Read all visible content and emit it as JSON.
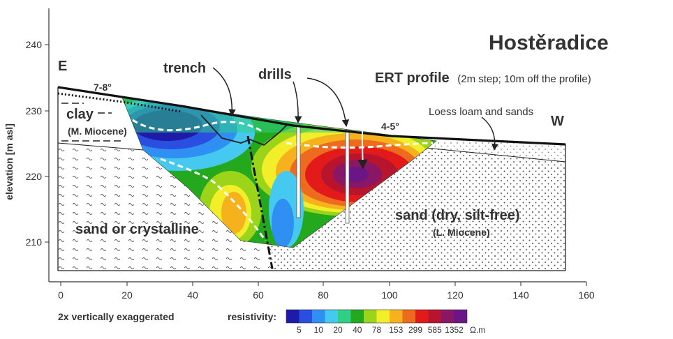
{
  "title": "Hostěradice",
  "y_axis": {
    "label": "elevation [m asl]",
    "ticks": [
      "210",
      "220",
      "230",
      "240"
    ]
  },
  "x_axis": {
    "ticks": [
      "0",
      "20",
      "40",
      "60",
      "80",
      "100",
      "120",
      "140",
      "160"
    ]
  },
  "directions": {
    "east": "E",
    "west": "W"
  },
  "slopes": {
    "east": "7-8°",
    "west": "4-5°"
  },
  "labels": {
    "trench": "trench",
    "drills": "drills",
    "ert_main": "ERT profile",
    "ert_note": "(2m step; 10m off the profile)",
    "loess": "Loess loam and sands",
    "clay": "clay",
    "clay_age": "(M. Miocene)",
    "sand_crystalline": "sand or crystalline",
    "sand_dry": "sand (dry, silt-free)",
    "sand_age": "(L. Miocene)",
    "exaggeration": "2x vertically exaggerated"
  },
  "legend": {
    "title": "resistivity:",
    "unit": "Ω.m",
    "values": [
      "5",
      "10",
      "20",
      "40",
      "78",
      "153",
      "299",
      "585",
      "1352"
    ],
    "colors": [
      "#1e1ba8",
      "#2a4fe0",
      "#2f8ff2",
      "#46c9f0",
      "#2fcf85",
      "#23a81e",
      "#9bd418",
      "#f2ef2a",
      "#f5b21c",
      "#ee6a1f",
      "#e21a1a",
      "#b8142e",
      "#8a1666",
      "#6a1686"
    ]
  }
}
